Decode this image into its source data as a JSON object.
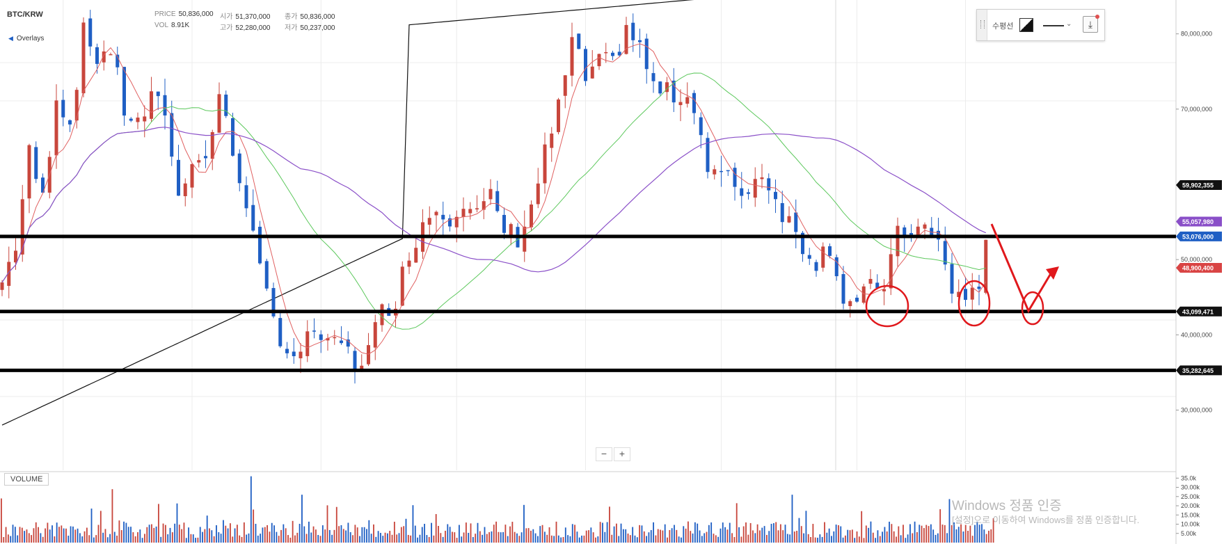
{
  "header": {
    "symbol": "BTC/KRW",
    "overlays_label": "Overlays",
    "price_label": "PRICE",
    "price_value": "50,836,000",
    "vol_label": "VOL",
    "vol_value": "8.91K",
    "open_label": "시가",
    "open_value": "51,370,000",
    "high_label": "고가",
    "high_value": "52,280,000",
    "close_label": "종가",
    "close_value": "50,836,000",
    "low_label": "저가",
    "low_value": "50,237,000"
  },
  "toolbar": {
    "label": "수평선",
    "download_icon": "download-icon"
  },
  "zoom": {
    "minus": "−",
    "plus": "+"
  },
  "volume_label": "VOLUME",
  "watermark": {
    "line1": "Windows 정품 인증",
    "line2": "[설정]으로 이동하여 Windows를 정품 인증합니다."
  },
  "colors": {
    "up": "#c8463c",
    "down": "#1f5fc4",
    "ma_red": "#e06060",
    "ma_green": "#5cc85c",
    "ma_purple": "#8a4fc8",
    "ma_black": "#111111",
    "annotation": "#e0181c"
  },
  "chart_data": {
    "type": "candlestick",
    "title": "BTC/KRW",
    "y_unit": "KRW",
    "ylim": [
      22000000,
      84500000
    ],
    "y_ticks": [
      "30,000,000",
      "40,000,000",
      "50,000,000",
      "70,000,000",
      "80,000,000"
    ],
    "y_tick_values": [
      30000000,
      40000000,
      50000000,
      70000000,
      80000000
    ],
    "grid": true,
    "horizontal_lines": [
      {
        "value": 53076000,
        "label": "53,076,000",
        "color": "#1f5fc4"
      },
      {
        "value": 43099471,
        "label": "43,099,471",
        "color": "#111111"
      },
      {
        "value": 35282645,
        "label": "35,282,645",
        "color": "#111111"
      }
    ],
    "last_value_tags": [
      {
        "value": 59902355,
        "label": "59,902,355",
        "color": "#111111"
      },
      {
        "value": 55057980,
        "label": "55,057,980",
        "color": "#8a4fc8"
      },
      {
        "value": 48900400,
        "label": "48,900,400",
        "color": "#d94444"
      }
    ],
    "price_path": [
      [
        0,
        47
      ],
      [
        2,
        52
      ],
      [
        4,
        64
      ],
      [
        6,
        58
      ],
      [
        8,
        72
      ],
      [
        10,
        68
      ],
      [
        12,
        80
      ],
      [
        14,
        77
      ],
      [
        16,
        78
      ],
      [
        18,
        70
      ],
      [
        20,
        68
      ],
      [
        22,
        71
      ],
      [
        24,
        70
      ],
      [
        26,
        58
      ],
      [
        28,
        64
      ],
      [
        30,
        63
      ],
      [
        32,
        72
      ],
      [
        34,
        64
      ],
      [
        36,
        58
      ],
      [
        38,
        48
      ],
      [
        40,
        42
      ],
      [
        42,
        38
      ],
      [
        44,
        37
      ],
      [
        46,
        41
      ],
      [
        48,
        38
      ],
      [
        50,
        39
      ],
      [
        52,
        36
      ],
      [
        54,
        38
      ],
      [
        56,
        43
      ],
      [
        58,
        45
      ],
      [
        60,
        51
      ],
      [
        62,
        55
      ],
      [
        64,
        57
      ],
      [
        66,
        56
      ],
      [
        68,
        58
      ],
      [
        70,
        56
      ],
      [
        72,
        58
      ],
      [
        74,
        54
      ],
      [
        76,
        53
      ],
      [
        78,
        57
      ],
      [
        80,
        64
      ],
      [
        82,
        70
      ],
      [
        84,
        79
      ],
      [
        86,
        74
      ],
      [
        88,
        76
      ],
      [
        90,
        76
      ],
      [
        92,
        81
      ],
      [
        94,
        78
      ],
      [
        96,
        73
      ],
      [
        98,
        72
      ],
      [
        100,
        72
      ],
      [
        102,
        71
      ],
      [
        104,
        62
      ],
      [
        106,
        61
      ],
      [
        108,
        60
      ],
      [
        110,
        59
      ],
      [
        112,
        62
      ],
      [
        114,
        58
      ],
      [
        116,
        55
      ],
      [
        118,
        52
      ],
      [
        120,
        50
      ],
      [
        122,
        52
      ],
      [
        124,
        45
      ],
      [
        126,
        44
      ],
      [
        128,
        46
      ],
      [
        130,
        47
      ],
      [
        132,
        53
      ],
      [
        134,
        54
      ],
      [
        136,
        54
      ],
      [
        138,
        52
      ],
      [
        140,
        46
      ],
      [
        142,
        45
      ],
      [
        144,
        46
      ],
      [
        145,
        53
      ]
    ],
    "volume": {
      "ylim": [
        0,
        37000
      ],
      "y_ticks": [
        "5.00k",
        "10.00k",
        "15.00k",
        "20.00k",
        "25.00k",
        "30.00k",
        "35.0k"
      ],
      "y_tick_values": [
        5000,
        10000,
        15000,
        20000,
        25000,
        30000,
        35000
      ]
    }
  }
}
